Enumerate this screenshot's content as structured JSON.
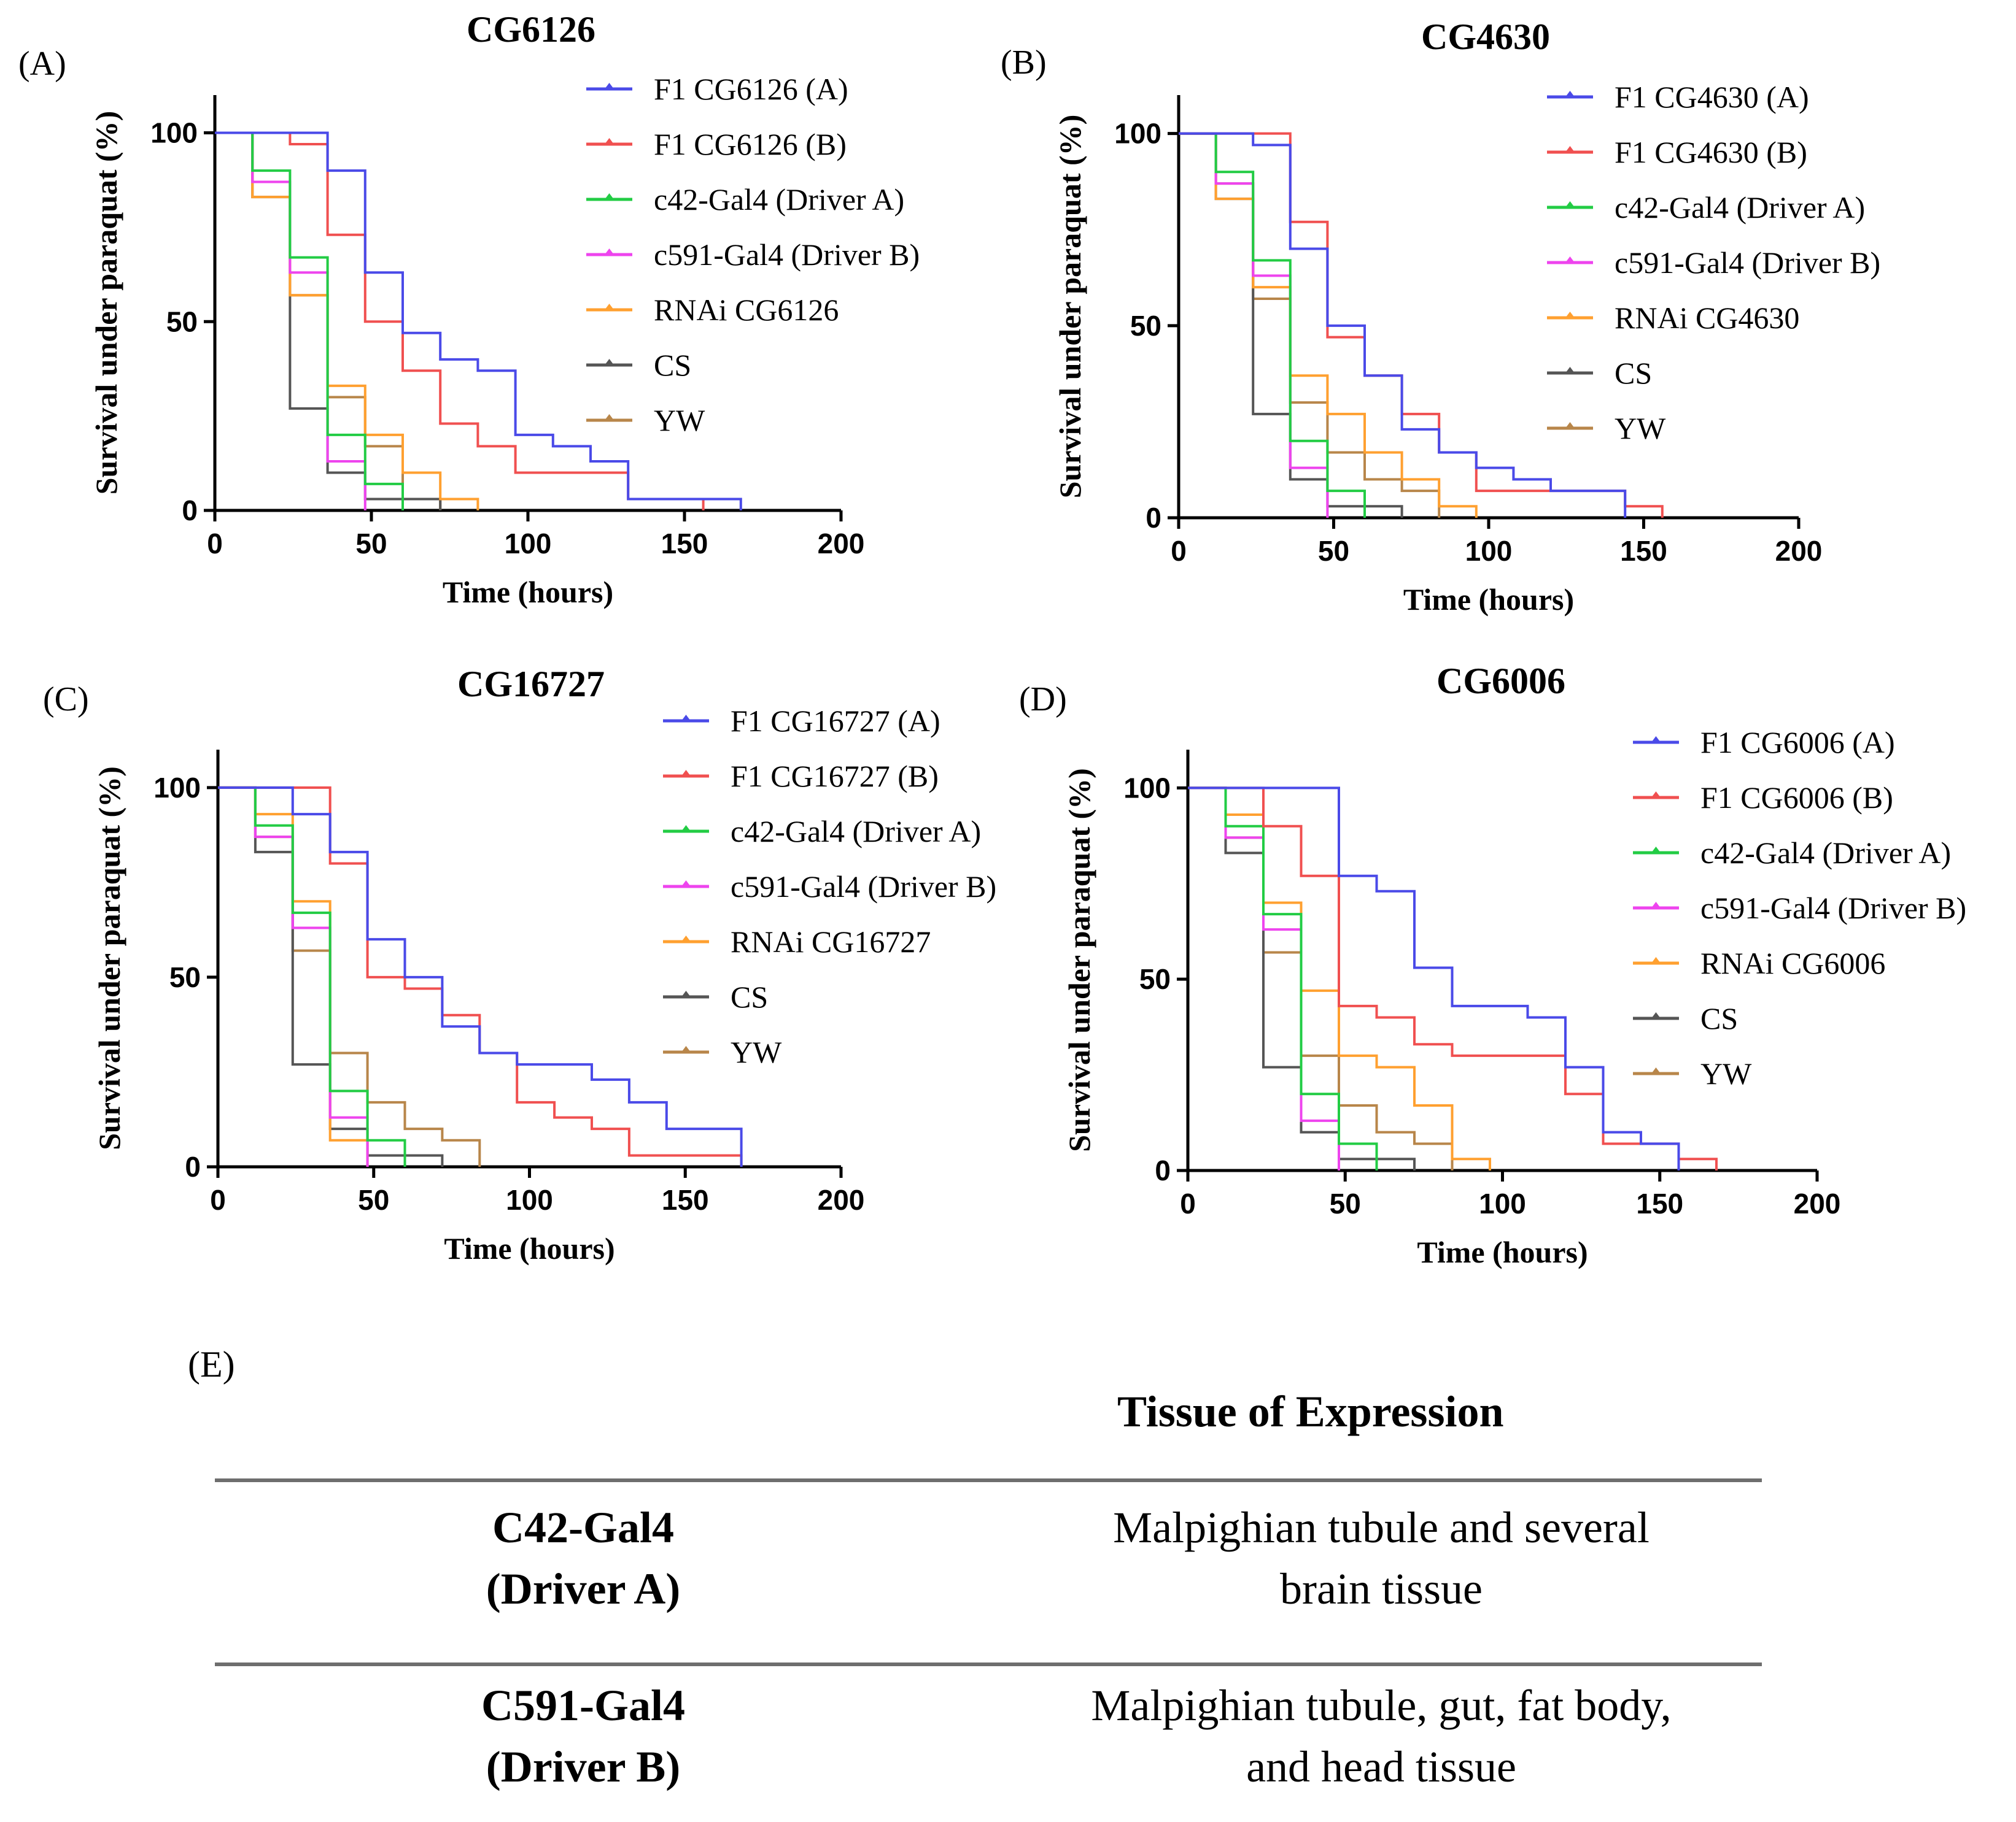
{
  "chart_data": [
    {
      "type": "line",
      "letter": "(A)",
      "title": "CG6126",
      "xlabel": "Time (hours)",
      "ylabel": "Survival under paraquat (%)",
      "xlim": [
        0,
        200
      ],
      "ylim": [
        0,
        110
      ],
      "xticks": [
        0,
        50,
        100,
        150,
        200
      ],
      "yticks": [
        0,
        50,
        100
      ],
      "series": [
        {
          "name": "F1 CG6126 (A)",
          "color": "#4a4ae8",
          "x": [
            0,
            36,
            48,
            60,
            72,
            84,
            96,
            108,
            120,
            132,
            168
          ],
          "y": [
            100,
            90,
            63,
            47,
            40,
            37,
            20,
            17,
            13,
            3,
            0
          ]
        },
        {
          "name": "F1 CG6126 (B)",
          "color": "#f05050",
          "x": [
            0,
            24,
            36,
            48,
            60,
            72,
            84,
            96,
            132,
            156
          ],
          "y": [
            100,
            97,
            73,
            50,
            37,
            23,
            17,
            10,
            3,
            0
          ]
        },
        {
          "name": "c42-Gal4 (Driver A)",
          "color": "#22cc44",
          "x": [
            0,
            12,
            24,
            36,
            48,
            60
          ],
          "y": [
            100,
            90,
            67,
            20,
            7,
            0
          ]
        },
        {
          "name": "c591-Gal4 (Driver B)",
          "color": "#ee44ee",
          "x": [
            0,
            12,
            24,
            36,
            48
          ],
          "y": [
            100,
            87,
            63,
            13,
            0
          ]
        },
        {
          "name": "RNAi CG6126",
          "color": "#ffa030",
          "x": [
            0,
            12,
            24,
            36,
            48,
            60,
            72,
            84
          ],
          "y": [
            100,
            83,
            57,
            33,
            20,
            10,
            3,
            0
          ]
        },
        {
          "name": "CS",
          "color": "#555555",
          "x": [
            0,
            12,
            24,
            36,
            48,
            60,
            72
          ],
          "y": [
            100,
            83,
            27,
            10,
            3,
            3,
            0
          ]
        },
        {
          "name": "YW",
          "color": "#b8864a",
          "x": [
            0,
            12,
            24,
            36,
            48,
            60,
            72
          ],
          "y": [
            100,
            87,
            57,
            30,
            17,
            3,
            0
          ]
        }
      ]
    },
    {
      "type": "line",
      "letter": "(B)",
      "title": "CG4630",
      "xlabel": "Time (hours)",
      "ylabel": "Survival under paraquat (%)",
      "xlim": [
        0,
        200
      ],
      "ylim": [
        0,
        110
      ],
      "xticks": [
        0,
        50,
        100,
        150,
        200
      ],
      "yticks": [
        0,
        50,
        100
      ],
      "series": [
        {
          "name": "F1 CG4630 (A)",
          "color": "#4a4ae8",
          "x": [
            0,
            24,
            36,
            48,
            60,
            72,
            84,
            96,
            108,
            120,
            144
          ],
          "y": [
            100,
            97,
            70,
            50,
            37,
            23,
            17,
            13,
            10,
            7,
            0
          ]
        },
        {
          "name": "F1 CG4630 (B)",
          "color": "#f05050",
          "x": [
            0,
            24,
            36,
            48,
            60,
            72,
            84,
            96,
            132,
            144,
            156
          ],
          "y": [
            100,
            100,
            77,
            47,
            37,
            27,
            17,
            7,
            7,
            3,
            0
          ]
        },
        {
          "name": "c42-Gal4 (Driver A)",
          "color": "#22cc44",
          "x": [
            0,
            12,
            24,
            36,
            48,
            60
          ],
          "y": [
            100,
            90,
            67,
            20,
            7,
            0
          ]
        },
        {
          "name": "c591-Gal4 (Driver B)",
          "color": "#ee44ee",
          "x": [
            0,
            12,
            24,
            36,
            48
          ],
          "y": [
            100,
            87,
            63,
            13,
            0
          ]
        },
        {
          "name": "RNAi CG4630",
          "color": "#ffa030",
          "x": [
            0,
            12,
            24,
            36,
            48,
            60,
            72,
            84,
            96
          ],
          "y": [
            100,
            83,
            60,
            37,
            27,
            17,
            10,
            3,
            0
          ]
        },
        {
          "name": "CS",
          "color": "#555555",
          "x": [
            0,
            12,
            24,
            36,
            48,
            72
          ],
          "y": [
            100,
            83,
            27,
            10,
            3,
            0
          ]
        },
        {
          "name": "YW",
          "color": "#b8864a",
          "x": [
            0,
            12,
            24,
            36,
            48,
            60,
            72,
            84
          ],
          "y": [
            100,
            87,
            57,
            30,
            17,
            10,
            7,
            0
          ]
        }
      ]
    },
    {
      "type": "line",
      "letter": "(C)",
      "title": "CG16727",
      "xlabel": "Time (hours)",
      "ylabel": "Survival under paraquat (%)",
      "xlim": [
        0,
        200
      ],
      "ylim": [
        0,
        110
      ],
      "xticks": [
        0,
        50,
        100,
        150,
        200
      ],
      "yticks": [
        0,
        50,
        100
      ],
      "series": [
        {
          "name": "F1 CG16727 (A)",
          "color": "#4a4ae8",
          "x": [
            0,
            24,
            36,
            48,
            60,
            72,
            84,
            96,
            108,
            120,
            132,
            144,
            168
          ],
          "y": [
            100,
            93,
            83,
            60,
            50,
            37,
            30,
            27,
            27,
            23,
            17,
            10,
            0
          ]
        },
        {
          "name": "F1 CG16727 (B)",
          "color": "#f05050",
          "x": [
            0,
            24,
            36,
            48,
            60,
            72,
            84,
            96,
            108,
            120,
            132,
            144,
            168
          ],
          "y": [
            100,
            100,
            80,
            50,
            47,
            40,
            30,
            17,
            13,
            10,
            3,
            3,
            0
          ]
        },
        {
          "name": "c42-Gal4 (Driver A)",
          "color": "#22cc44",
          "x": [
            0,
            12,
            24,
            36,
            48,
            60
          ],
          "y": [
            100,
            90,
            67,
            20,
            7,
            0
          ]
        },
        {
          "name": "c591-Gal4 (Driver B)",
          "color": "#ee44ee",
          "x": [
            0,
            12,
            24,
            36,
            48
          ],
          "y": [
            100,
            87,
            63,
            13,
            0
          ]
        },
        {
          "name": "RNAi CG16727",
          "color": "#ffa030",
          "x": [
            0,
            12,
            24,
            36,
            48
          ],
          "y": [
            100,
            93,
            70,
            7,
            0
          ]
        },
        {
          "name": "CS",
          "color": "#555555",
          "x": [
            0,
            12,
            24,
            36,
            48,
            72
          ],
          "y": [
            100,
            83,
            27,
            10,
            3,
            0
          ]
        },
        {
          "name": "YW",
          "color": "#b8864a",
          "x": [
            0,
            12,
            24,
            36,
            48,
            60,
            72,
            84
          ],
          "y": [
            100,
            87,
            57,
            30,
            17,
            10,
            7,
            0
          ]
        }
      ]
    },
    {
      "type": "line",
      "letter": "(D)",
      "title": "CG6006",
      "xlabel": "Time (hours)",
      "ylabel": "Survival under paraquat (%)",
      "xlim": [
        0,
        200
      ],
      "ylim": [
        0,
        110
      ],
      "xticks": [
        0,
        50,
        100,
        150,
        200
      ],
      "yticks": [
        0,
        50,
        100
      ],
      "series": [
        {
          "name": "F1 CG6006 (A)",
          "color": "#4a4ae8",
          "x": [
            0,
            48,
            60,
            72,
            84,
            108,
            120,
            132,
            144,
            156
          ],
          "y": [
            100,
            77,
            73,
            53,
            43,
            40,
            27,
            10,
            7,
            0
          ]
        },
        {
          "name": "F1 CG6006 (B)",
          "color": "#f05050",
          "x": [
            0,
            24,
            36,
            48,
            60,
            72,
            84,
            120,
            132,
            156,
            168
          ],
          "y": [
            100,
            90,
            77,
            43,
            40,
            33,
            30,
            20,
            7,
            3,
            0
          ]
        },
        {
          "name": "c42-Gal4 (Driver A)",
          "color": "#22cc44",
          "x": [
            0,
            12,
            24,
            36,
            48,
            60
          ],
          "y": [
            100,
            90,
            67,
            20,
            7,
            0
          ]
        },
        {
          "name": "c591-Gal4 (Driver B)",
          "color": "#ee44ee",
          "x": [
            0,
            12,
            24,
            36,
            48
          ],
          "y": [
            100,
            87,
            63,
            13,
            0
          ]
        },
        {
          "name": "RNAi CG6006",
          "color": "#ffa030",
          "x": [
            0,
            12,
            24,
            36,
            48,
            60,
            72,
            84,
            96
          ],
          "y": [
            100,
            93,
            70,
            47,
            30,
            27,
            17,
            3,
            0
          ]
        },
        {
          "name": "CS",
          "color": "#555555",
          "x": [
            0,
            12,
            24,
            36,
            48,
            72
          ],
          "y": [
            100,
            83,
            27,
            10,
            3,
            0
          ]
        },
        {
          "name": "YW",
          "color": "#b8864a",
          "x": [
            0,
            12,
            24,
            36,
            48,
            60,
            72,
            84
          ],
          "y": [
            100,
            87,
            57,
            30,
            17,
            10,
            7,
            0
          ]
        }
      ]
    }
  ],
  "table": {
    "letter": "(E)",
    "header": "Tissue of Expression",
    "rows": [
      {
        "driver_line1": "C42-Gal4",
        "driver_line2": "(Driver A)",
        "tissue_line1": "Malpighian  tubule  and several",
        "tissue_line2": "brain  tissue"
      },
      {
        "driver_line1": "C591-Gal4",
        "driver_line2": "(Driver  B)",
        "tissue_line1": "Malpighian  tubule,  gut,  fat body,",
        "tissue_line2": "and head tissue"
      }
    ]
  }
}
